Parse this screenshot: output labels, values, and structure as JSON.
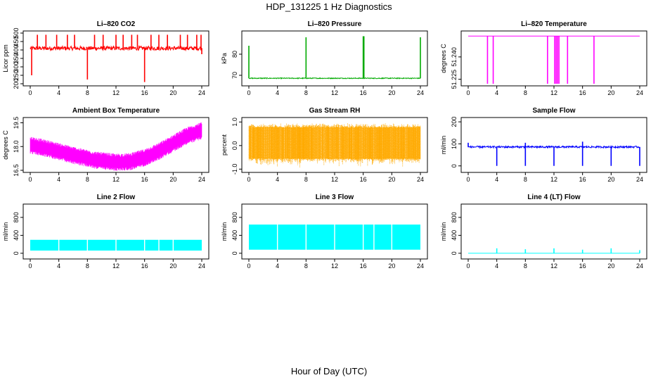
{
  "figure": {
    "title": "HDP_131225  1 Hz Diagnostics",
    "xlabel": "Hour of Day (UTC)"
  },
  "chart_data": [
    {
      "type": "line",
      "title": "Li–820 CO2",
      "ylabel": "Licor ppm",
      "color": "#ff0000",
      "xlim": [
        0,
        24
      ],
      "xticks": [
        0,
        4,
        8,
        12,
        16,
        20,
        24
      ],
      "ylim": [
        200,
        500
      ],
      "yticks": [
        200,
        250,
        300,
        350,
        400,
        450,
        500
      ],
      "baseline": 410,
      "noise": 12,
      "spikes_up": [
        [
          1,
          490
        ],
        [
          2.2,
          490
        ],
        [
          3.7,
          490
        ],
        [
          5.2,
          490
        ],
        [
          6.2,
          490
        ],
        [
          9.0,
          490
        ],
        [
          10.2,
          490
        ],
        [
          12.0,
          490
        ],
        [
          13.0,
          490
        ],
        [
          14.2,
          490
        ],
        [
          15.0,
          490
        ],
        [
          16.9,
          490
        ],
        [
          18.0,
          490
        ],
        [
          19.2,
          490
        ],
        [
          21.0,
          490
        ],
        [
          22.0,
          490
        ],
        [
          23.3,
          490
        ],
        [
          23.9,
          490
        ]
      ],
      "spikes_down": [
        [
          0.2,
          250
        ],
        [
          8.0,
          225
        ],
        [
          16.0,
          210
        ],
        [
          24.0,
          375
        ]
      ]
    },
    {
      "type": "line",
      "title": "Li–820 Pressure",
      "ylabel": "kPa",
      "color": "#00aa00",
      "xlim": [
        0,
        24
      ],
      "xticks": [
        0,
        4,
        8,
        12,
        16,
        20,
        24
      ],
      "ylim": [
        66,
        90
      ],
      "yticks": [
        70,
        80
      ],
      "baseline": 68.6,
      "noise": 0.2,
      "spikes_up": [
        [
          0.0,
          84
        ],
        [
          8.0,
          88
        ],
        [
          16.0,
          88.5
        ],
        [
          16.1,
          88.5
        ],
        [
          24.0,
          88
        ]
      ],
      "spikes_down": []
    },
    {
      "type": "line",
      "title": "Li–820 Temperature",
      "ylabel": "degrees C",
      "color": "#ff00ff",
      "xlim": [
        0,
        24
      ],
      "xticks": [
        0,
        4,
        8,
        12,
        16,
        20,
        24
      ],
      "ylim": [
        51.222,
        51.256
      ],
      "yticks": [
        51.225,
        51.24
      ],
      "baseline": 51.254,
      "noise": 0,
      "spikes_up": [],
      "spikes_down": [
        [
          2.7,
          51.222
        ],
        [
          3.5,
          51.222
        ],
        [
          11.1,
          51.222
        ],
        [
          12.1,
          51.222
        ],
        [
          12.3,
          51.222
        ],
        [
          12.5,
          51.222
        ],
        [
          12.7,
          51.222
        ],
        [
          13.9,
          51.222
        ],
        [
          17.6,
          51.222
        ]
      ]
    },
    {
      "type": "line",
      "title": "Ambient Box Temperature",
      "ylabel": "degrees C",
      "color": "#ff00ff",
      "xlim": [
        0,
        24
      ],
      "xticks": [
        0,
        4,
        8,
        12,
        16,
        20,
        24
      ],
      "ylim": [
        16.5,
        19.7
      ],
      "yticks": [
        16.5,
        18.0,
        19.5
      ],
      "trend_x": [
        0,
        3,
        6,
        9,
        12,
        14,
        16,
        18,
        20,
        22,
        24
      ],
      "trend_y": [
        18.1,
        17.8,
        17.45,
        17.15,
        17.0,
        17.05,
        17.3,
        17.7,
        18.2,
        18.7,
        19.0
      ],
      "noise": 0.55
    },
    {
      "type": "area",
      "title": "Gas Stream RH",
      "ylabel": "percent",
      "color": "#ffaa00",
      "xlim": [
        0,
        24
      ],
      "xticks": [
        0,
        4,
        8,
        12,
        16,
        20,
        24
      ],
      "ylim": [
        -1.05,
        1.1
      ],
      "yticks": [
        -1.0,
        0.0,
        1.0
      ],
      "band_low": -0.55,
      "band_high": 0.75,
      "extreme_low": -1.0,
      "extreme_high": 0.95
    },
    {
      "type": "line",
      "title": "Sample Flow",
      "ylabel": "ml/min",
      "color": "#0000ff",
      "xlim": [
        0,
        24
      ],
      "xticks": [
        0,
        4,
        8,
        12,
        16,
        20,
        24
      ],
      "ylim": [
        -20,
        210
      ],
      "yticks": [
        0,
        100,
        200
      ],
      "baseline": 86,
      "noise": 4,
      "spikes_up": [
        [
          0.0,
          105
        ],
        [
          8.0,
          105
        ],
        [
          16.0,
          110
        ]
      ],
      "spikes_down": [
        [
          4.0,
          0
        ],
        [
          8.0,
          0
        ],
        [
          12.0,
          0
        ],
        [
          16.0,
          0
        ],
        [
          20.0,
          0
        ],
        [
          24.0,
          0
        ]
      ]
    },
    {
      "type": "area",
      "title": "Line 2 Flow",
      "ylabel": "ml/min",
      "color": "#00ffff",
      "xlim": [
        0,
        24
      ],
      "xticks": [
        0,
        4,
        8,
        12,
        16,
        20,
        24
      ],
      "ylim": [
        -80,
        1050
      ],
      "yticks": [
        0,
        400,
        800
      ],
      "band_low": 60,
      "band_high": 300,
      "gaps": [
        4.0,
        8.0,
        12.0,
        16.0,
        18.0,
        20.0
      ]
    },
    {
      "type": "area",
      "title": "Line 3 Flow",
      "ylabel": "ml/min",
      "color": "#00ffff",
      "xlim": [
        0,
        24
      ],
      "xticks": [
        0,
        4,
        8,
        12,
        16,
        20,
        24
      ],
      "ylim": [
        -80,
        1050
      ],
      "yticks": [
        0,
        400,
        800
      ],
      "band_low": 80,
      "band_high": 640,
      "gaps": [
        4.0,
        8.0,
        12.0,
        16.0,
        17.5,
        20.0
      ]
    },
    {
      "type": "line",
      "title": "Line 4 (LT) Flow",
      "ylabel": "ml/min",
      "color": "#00ffff",
      "xlim": [
        0,
        24
      ],
      "xticks": [
        0,
        4,
        8,
        12,
        16,
        20,
        24
      ],
      "ylim": [
        -80,
        1050
      ],
      "yticks": [
        0,
        400,
        800
      ],
      "baseline": 0,
      "noise": 0,
      "spikes_up": [
        [
          4.0,
          110
        ],
        [
          8.0,
          90
        ],
        [
          12.0,
          110
        ],
        [
          16.0,
          80
        ],
        [
          20.0,
          110
        ],
        [
          24.0,
          70
        ]
      ],
      "spikes_down": []
    }
  ]
}
